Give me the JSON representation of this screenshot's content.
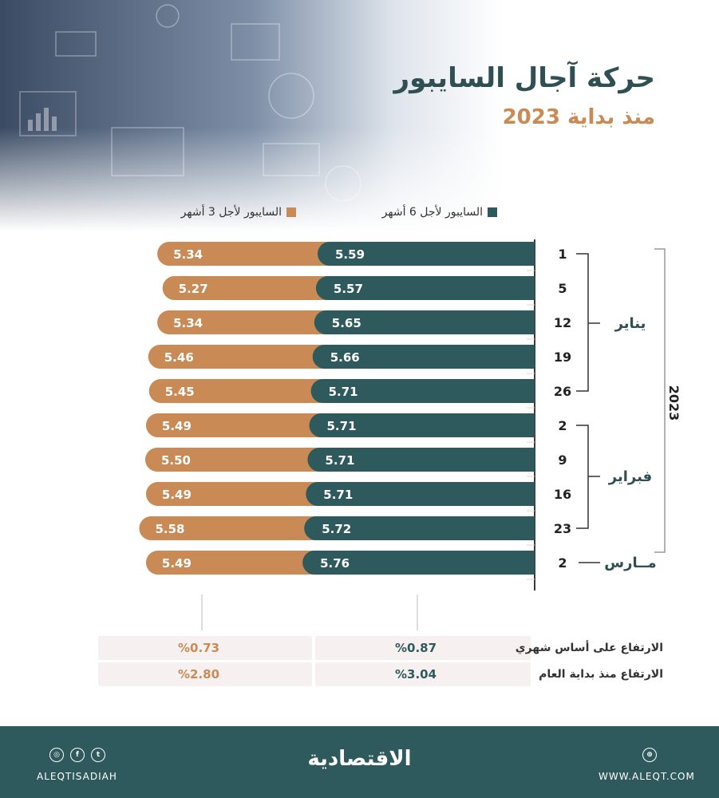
{
  "title": "حركة آجال السايبور",
  "subtitle": "منذ بداية 2023",
  "legend": {
    "six_month": "السايبور لأجل 6 أشهر",
    "three_month": "السايبور لأجل 3 أشهر"
  },
  "colors": {
    "six_month": "#2f5a5d",
    "three_month": "#c98a55",
    "accent_text": "#c98a55",
    "footer_bg": "#2f5a5d"
  },
  "chart_data": {
    "type": "bar",
    "year": "2023",
    "months": [
      {
        "name": "يناير",
        "days": [
          "1",
          "5",
          "12",
          "19",
          "26"
        ]
      },
      {
        "name": "فبراير",
        "days": [
          "2",
          "9",
          "16",
          "23"
        ]
      },
      {
        "name": "مــارس",
        "days": [
          "2"
        ]
      }
    ],
    "categories": [
      "1",
      "5",
      "12",
      "19",
      "26",
      "2",
      "9",
      "16",
      "23",
      "2"
    ],
    "series": [
      {
        "name": "السايبور لأجل 6 أشهر",
        "values": [
          5.59,
          5.57,
          5.65,
          5.66,
          5.71,
          5.71,
          5.71,
          5.71,
          5.72,
          5.76
        ]
      },
      {
        "name": "السايبور لأجل 3 أشهر",
        "values": [
          5.34,
          5.27,
          5.34,
          5.46,
          5.45,
          5.49,
          5.5,
          5.49,
          5.58,
          5.49
        ]
      }
    ]
  },
  "summary": {
    "monthly": {
      "label": "الارتفاع على أساس شهري",
      "six": "%0.87",
      "three": "%0.73"
    },
    "ytd": {
      "label": "الارتفاع منذ بداية العام",
      "six": "%3.04",
      "three": "%2.80"
    }
  },
  "footer": {
    "brand": "الاقتصادية",
    "handle": "ALEQTISADIAH",
    "site": "WWW.ALEQT.COM",
    "icons": [
      "instagram-icon",
      "facebook-icon",
      "twitter-icon",
      "globe-icon"
    ]
  }
}
